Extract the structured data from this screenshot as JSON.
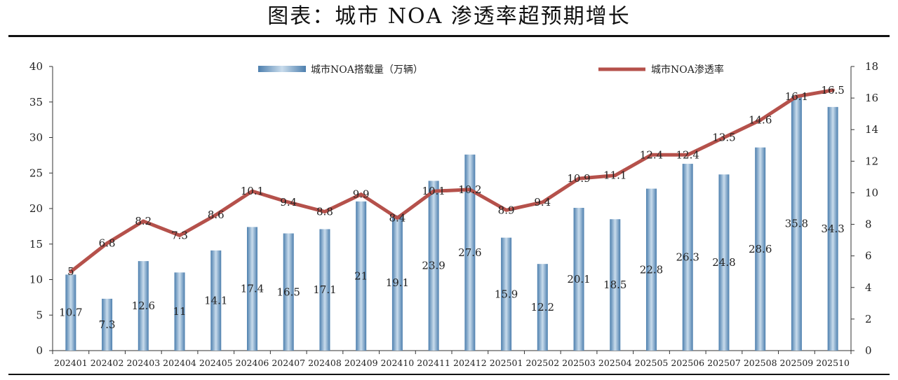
{
  "title": "图表：城市 NOA 渗透率超预期增长",
  "chart_data": {
    "type": "bar+line",
    "categories": [
      "202401",
      "202402",
      "202403",
      "202404",
      "202405",
      "202406",
      "202407",
      "202408",
      "202409",
      "202410",
      "202411",
      "202412",
      "202501",
      "202502",
      "202503",
      "202504",
      "202505",
      "202506",
      "202507",
      "202508",
      "202509",
      "202510"
    ],
    "series": [
      {
        "name": "城市NOA搭载量（万辆）",
        "type": "bar",
        "axis": "left",
        "values": [
          10.7,
          7.3,
          12.6,
          11,
          14.1,
          17.4,
          16.5,
          17.1,
          21,
          19.1,
          23.9,
          27.6,
          15.9,
          12.2,
          20.1,
          18.5,
          22.8,
          26.3,
          24.8,
          28.6,
          35.8,
          34.3
        ]
      },
      {
        "name": "城市NOA渗透率",
        "type": "line",
        "axis": "right",
        "values": [
          5,
          6.8,
          8.2,
          7.3,
          8.6,
          10.1,
          9.4,
          8.8,
          9.9,
          8.4,
          10.1,
          10.2,
          8.9,
          9.4,
          10.9,
          11.1,
          12.4,
          12.4,
          13.5,
          14.6,
          16.1,
          16.5
        ]
      }
    ],
    "y_left": {
      "min": 0,
      "max": 40,
      "ticks": [
        0,
        5,
        10,
        15,
        20,
        25,
        30,
        35,
        40
      ]
    },
    "y_right": {
      "min": 0,
      "max": 18,
      "ticks": [
        0,
        2,
        4,
        6,
        8,
        10,
        12,
        14,
        16,
        18
      ]
    },
    "legend_position": "top",
    "colors": {
      "bar_dark": "#4d7fae",
      "bar_light": "#c9dcec",
      "line": "#b5514b",
      "axis": "#333333"
    }
  }
}
